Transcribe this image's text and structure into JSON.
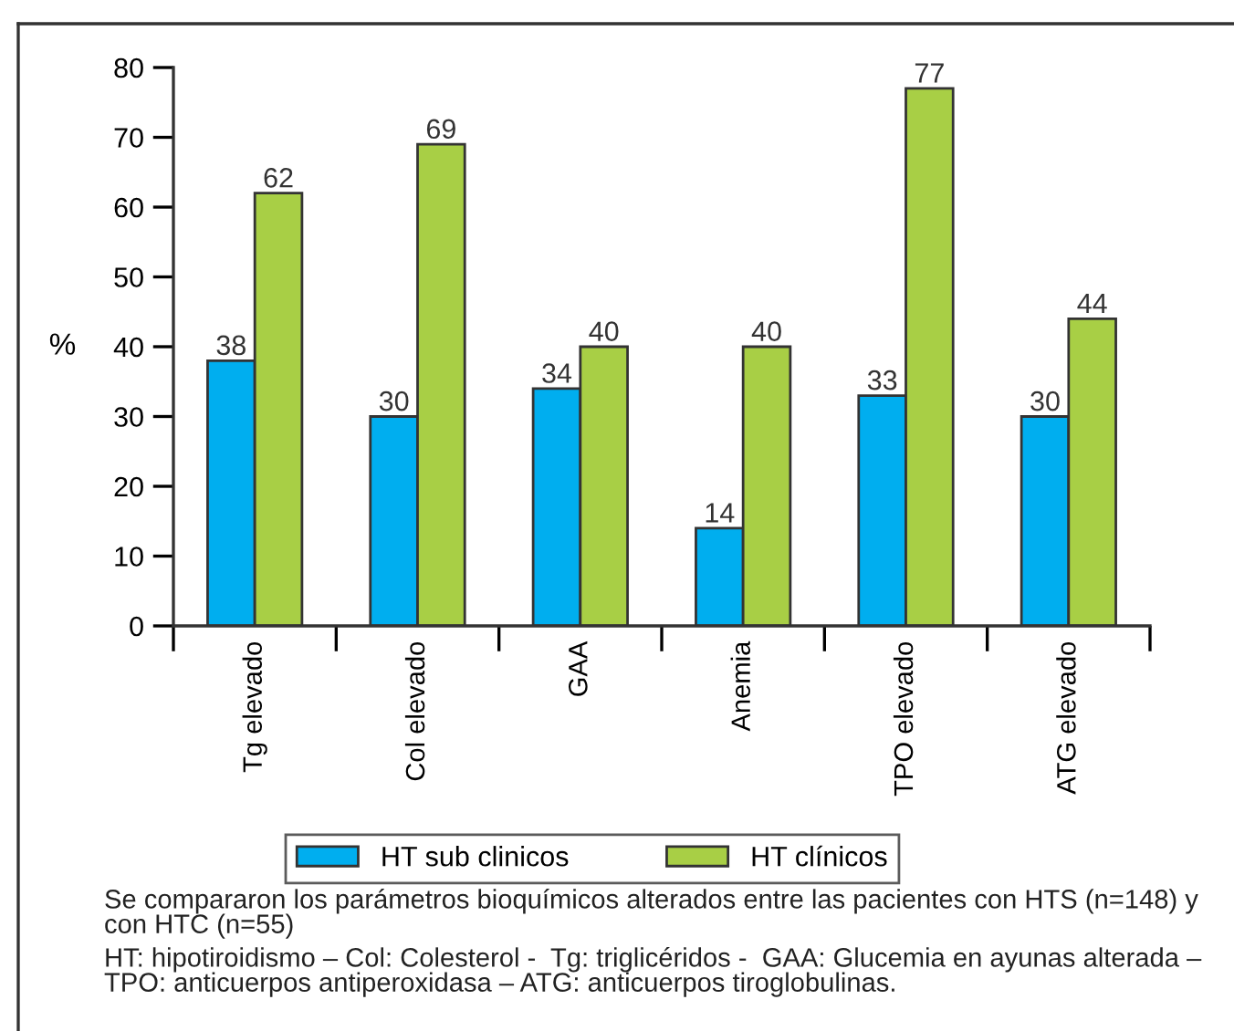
{
  "chart_data": {
    "type": "bar",
    "categories": [
      "Tg elevado",
      "Col elevado",
      "GAA",
      "Anemia",
      "TPO elevado",
      "ATG elevado"
    ],
    "series": [
      {
        "name": "HT sub clinicos",
        "color": "#00aeef",
        "values": [
          38,
          30,
          34,
          14,
          33,
          30
        ]
      },
      {
        "name": "HT clínicos",
        "color": "#a8cf45",
        "values": [
          62,
          69,
          40,
          40,
          77,
          44
        ]
      }
    ],
    "ylabel": "%",
    "ylim": [
      0,
      80
    ],
    "yticks": [
      0,
      10,
      20,
      30,
      40,
      50,
      60,
      70,
      80
    ],
    "data_labels": true,
    "grid": false,
    "legend": "bottom",
    "annotations": [
      "Se compararon los parámetros bioquímicos alterados entre las pacientes con HTS (n=148) y con HTC (n=55)",
      "HT: hipotiroidismo – Col: Colesterol -  Tg: triglicéridos -  GAA: Glucemia en ayunas alterada – TPO: anticuerpos antiperoxidasa – ATG: anticuerpos tiroglobulinas."
    ]
  }
}
